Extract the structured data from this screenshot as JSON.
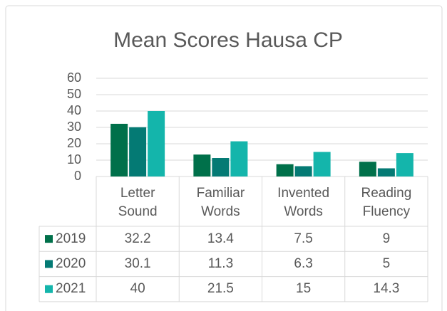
{
  "chart_data": {
    "type": "bar",
    "title": "Mean Scores Hausa CP",
    "categories": [
      "Letter Sound",
      "Familiar Words",
      "Invented Words",
      "Reading Fluency"
    ],
    "series": [
      {
        "name": "2019",
        "color": "#00704a",
        "values": [
          32.2,
          13.4,
          7.5,
          9
        ]
      },
      {
        "name": "2020",
        "color": "#047a74",
        "values": [
          30.1,
          11.3,
          6.3,
          5
        ]
      },
      {
        "name": "2021",
        "color": "#14b5ab",
        "values": [
          40,
          21.5,
          15,
          14.3
        ]
      }
    ],
    "ylim": [
      0,
      60
    ],
    "yticks": [
      0,
      10,
      20,
      30,
      40,
      50,
      60
    ],
    "grid": true,
    "data_table": true
  }
}
